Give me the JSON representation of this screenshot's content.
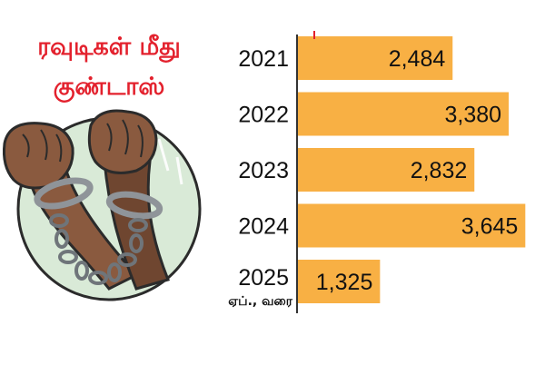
{
  "title_lines": [
    "ரவுடிகள் மீது",
    "குண்டாஸ்"
  ],
  "chart_data": {
    "type": "bar",
    "orientation": "horizontal",
    "categories": [
      "2021",
      "2022",
      "2023",
      "2024",
      "2025"
    ],
    "category_sublabels": [
      "",
      "",
      "",
      "",
      "ஏப்., வரை"
    ],
    "values": [
      2484,
      3380,
      2832,
      3645,
      1325
    ],
    "value_labels": [
      "2,484",
      "3,380",
      "2,832",
      "3,645",
      "1,325"
    ],
    "xlim": [
      0,
      3800
    ],
    "bar_color": "#f8b044",
    "axis_color": "#333333",
    "grid": false,
    "legend": "none"
  },
  "illustration": {
    "subject": "fists-in-handcuffs-chain",
    "colors": {
      "circle": "#d9ead7",
      "skin": "#8a5a3f",
      "chain": "#8f9499"
    }
  }
}
